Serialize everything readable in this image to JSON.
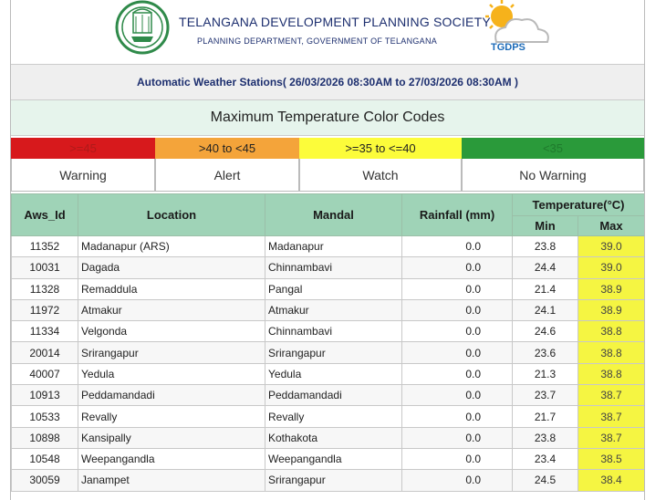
{
  "header": {
    "title": "TELANGANA DEVELOPMENT PLANNING SOCIETY",
    "subtitle": "PLANNING DEPARTMENT, GOVERNMENT OF TELANGANA",
    "logo_text": "TGDPS"
  },
  "station_bar": "Automatic Weather Stations( 26/03/2026 08:30AM to 27/03/2026 08:30AM )",
  "color_codes": {
    "title": "Maximum Temperature Color Codes",
    "items": [
      {
        "range": ">=45",
        "label": "Warning",
        "color": "#d7191c",
        "text_color": "#b01a1a"
      },
      {
        "range": ">40 to <45",
        "label": "Alert",
        "color": "#f4a43a",
        "text_color": "#222222"
      },
      {
        "range": ">=35 to <=40",
        "label": "Watch",
        "color": "#fcfc3a",
        "text_color": "#222222"
      },
      {
        "range": "<35",
        "label": "No Warning",
        "color": "#2a9a3a",
        "text_color": "#1f7a2c"
      }
    ]
  },
  "table": {
    "headers": {
      "aws_id": "Aws_Id",
      "location": "Location",
      "mandal": "Mandal",
      "rainfall": "Rainfall (mm)",
      "temperature": "Temperature(°C)",
      "min": "Min",
      "max": "Max"
    },
    "rows": [
      {
        "id": "11352",
        "location": "Madanapur (ARS)",
        "mandal": "Madanapur",
        "rain": "0.0",
        "min": "23.8",
        "max": "39.0"
      },
      {
        "id": "10031",
        "location": "Dagada",
        "mandal": "Chinnambavi",
        "rain": "0.0",
        "min": "24.4",
        "max": "39.0"
      },
      {
        "id": "11328",
        "location": "Remaddula",
        "mandal": "Pangal",
        "rain": "0.0",
        "min": "21.4",
        "max": "38.9"
      },
      {
        "id": "11972",
        "location": "Atmakur",
        "mandal": "Atmakur",
        "rain": "0.0",
        "min": "24.1",
        "max": "38.9"
      },
      {
        "id": "11334",
        "location": "Velgonda",
        "mandal": "Chinnambavi",
        "rain": "0.0",
        "min": "24.6",
        "max": "38.8"
      },
      {
        "id": "20014",
        "location": "Srirangapur",
        "mandal": "Srirangapur",
        "rain": "0.0",
        "min": "23.6",
        "max": "38.8"
      },
      {
        "id": "40007",
        "location": "Yedula",
        "mandal": "Yedula",
        "rain": "0.0",
        "min": "21.3",
        "max": "38.8"
      },
      {
        "id": "10913",
        "location": "Peddamandadi",
        "mandal": "Peddamandadi",
        "rain": "0.0",
        "min": "23.7",
        "max": "38.7"
      },
      {
        "id": "10533",
        "location": "Revally",
        "mandal": "Revally",
        "rain": "0.0",
        "min": "21.7",
        "max": "38.7"
      },
      {
        "id": "10898",
        "location": "Kansipally",
        "mandal": "Kothakota",
        "rain": "0.0",
        "min": "23.8",
        "max": "38.7"
      },
      {
        "id": "10548",
        "location": "Weepangandla",
        "mandal": "Weepangandla",
        "rain": "0.0",
        "min": "23.4",
        "max": "38.5"
      },
      {
        "id": "30059",
        "location": "Janampet",
        "mandal": "Srirangapur",
        "rain": "0.0",
        "min": "24.5",
        "max": "38.4"
      }
    ]
  }
}
